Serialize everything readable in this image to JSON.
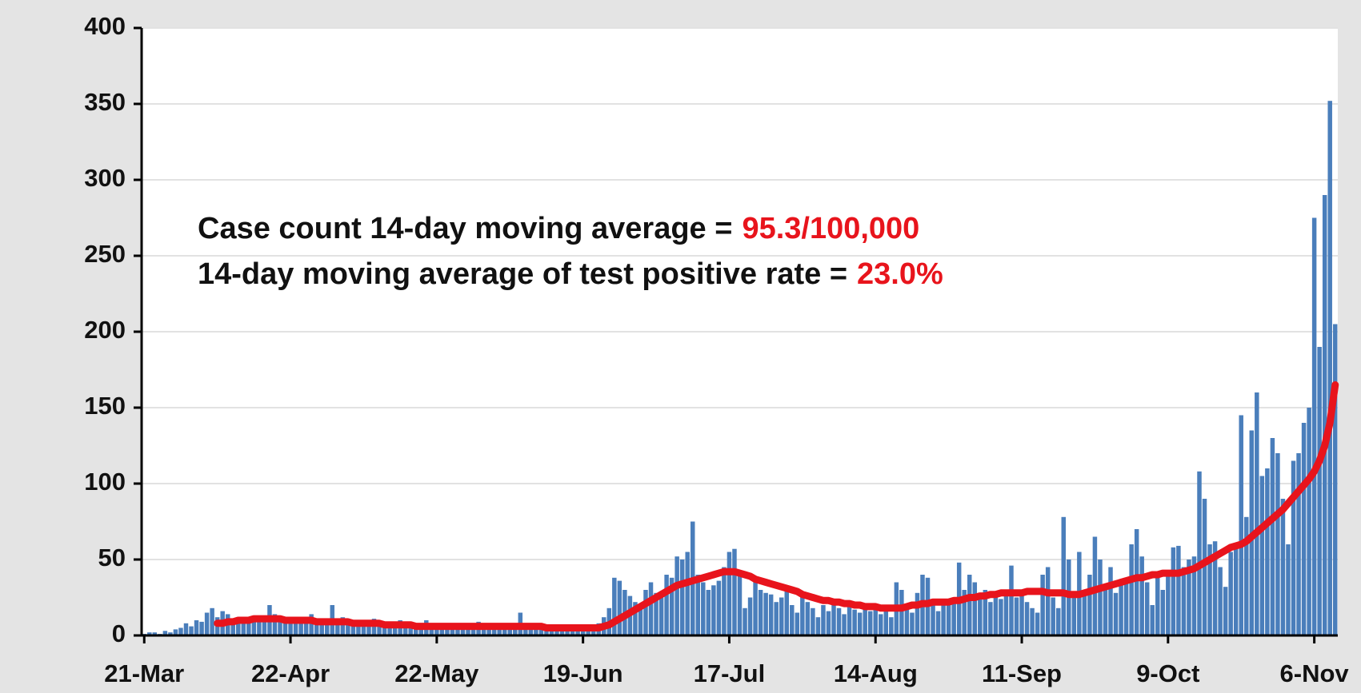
{
  "chart_data": {
    "type": "bar",
    "annotations": [
      {
        "text": "Case count 14-day moving average =",
        "value": "95.3/100,000"
      },
      {
        "text": "14-day moving average of test positive rate =",
        "value": "23.0%"
      }
    ],
    "categories": [
      "21-Mar",
      null,
      null,
      null,
      null,
      null,
      null,
      null,
      null,
      null,
      null,
      null,
      null,
      null,
      null,
      null,
      null,
      null,
      null,
      null,
      null,
      null,
      null,
      null,
      null,
      null,
      null,
      null,
      "22-Apr",
      null,
      null,
      null,
      null,
      null,
      null,
      null,
      null,
      null,
      null,
      null,
      null,
      null,
      null,
      null,
      null,
      null,
      null,
      null,
      null,
      null,
      null,
      null,
      null,
      null,
      null,
      null,
      "22-May",
      null,
      null,
      null,
      null,
      null,
      null,
      null,
      null,
      null,
      null,
      null,
      null,
      null,
      null,
      null,
      null,
      null,
      null,
      null,
      null,
      null,
      null,
      null,
      null,
      null,
      null,
      null,
      "19-Jun",
      null,
      null,
      null,
      null,
      null,
      null,
      null,
      null,
      null,
      null,
      null,
      null,
      null,
      null,
      null,
      null,
      null,
      null,
      null,
      null,
      null,
      null,
      null,
      null,
      null,
      null,
      null,
      "17-Jul",
      null,
      null,
      null,
      null,
      null,
      null,
      null,
      null,
      null,
      null,
      null,
      null,
      null,
      null,
      null,
      null,
      null,
      null,
      null,
      null,
      null,
      null,
      null,
      null,
      null,
      null,
      null,
      "14-Aug",
      null,
      null,
      null,
      null,
      null,
      null,
      null,
      null,
      null,
      null,
      null,
      null,
      null,
      null,
      null,
      null,
      null,
      null,
      null,
      null,
      null,
      null,
      null,
      null,
      null,
      null,
      null,
      "11-Sep",
      null,
      null,
      null,
      null,
      null,
      null,
      null,
      null,
      null,
      null,
      null,
      null,
      null,
      null,
      null,
      null,
      null,
      null,
      null,
      null,
      null,
      null,
      null,
      null,
      null,
      null,
      null,
      "9-Oct",
      null,
      null,
      null,
      null,
      null,
      null,
      null,
      null,
      null,
      null,
      null,
      null,
      null,
      null,
      null,
      null,
      null,
      null,
      null,
      null,
      null,
      null,
      null,
      null,
      null,
      null,
      null,
      "6-Nov",
      null,
      null,
      null,
      null
    ],
    "series": [
      {
        "type": "bar",
        "color": "#4a7ebb",
        "values": [
          1,
          2,
          2,
          1,
          3,
          2,
          4,
          5,
          8,
          6,
          10,
          9,
          15,
          18,
          12,
          16,
          14,
          10,
          9,
          8,
          12,
          11,
          13,
          10,
          20,
          14,
          9,
          11,
          10,
          12,
          8,
          9,
          14,
          10,
          7,
          8,
          20,
          9,
          12,
          8,
          6,
          10,
          7,
          9,
          11,
          6,
          8,
          5,
          9,
          10,
          7,
          6,
          8,
          5,
          10,
          7,
          6,
          5,
          7,
          4,
          8,
          6,
          5,
          6,
          9,
          4,
          7,
          5,
          6,
          8,
          4,
          5,
          15,
          6,
          4,
          5,
          7,
          3,
          6,
          4,
          5,
          7,
          4,
          6,
          5,
          4,
          6,
          8,
          12,
          18,
          38,
          36,
          30,
          26,
          22,
          18,
          30,
          35,
          28,
          25,
          40,
          38,
          52,
          50,
          55,
          75,
          40,
          35,
          30,
          33,
          36,
          45,
          55,
          57,
          42,
          18,
          25,
          35,
          30,
          28,
          27,
          22,
          25,
          30,
          20,
          15,
          28,
          22,
          18,
          12,
          20,
          16,
          22,
          18,
          14,
          19,
          17,
          15,
          20,
          16,
          18,
          14,
          16,
          12,
          35,
          30,
          20,
          15,
          28,
          40,
          38,
          24,
          16,
          20,
          22,
          25,
          48,
          30,
          40,
          35,
          28,
          30,
          22,
          26,
          24,
          28,
          46,
          25,
          30,
          22,
          18,
          15,
          40,
          45,
          25,
          18,
          78,
          50,
          28,
          55,
          30,
          40,
          65,
          50,
          30,
          45,
          28,
          35,
          38,
          60,
          70,
          52,
          35,
          20,
          38,
          30,
          40,
          58,
          59,
          45,
          50,
          52,
          108,
          90,
          60,
          62,
          45,
          32,
          55,
          60,
          145,
          78,
          135,
          160,
          105,
          110,
          130,
          120,
          90,
          60,
          115,
          120,
          140,
          150,
          275,
          190,
          290,
          352,
          205
        ]
      },
      {
        "type": "line",
        "color": "#e8141c",
        "values": [
          null,
          null,
          null,
          null,
          null,
          null,
          null,
          null,
          null,
          null,
          null,
          null,
          null,
          null,
          8,
          8,
          9,
          9,
          10,
          10,
          10,
          11,
          11,
          11,
          11,
          11,
          11,
          10,
          10,
          10,
          10,
          10,
          10,
          9,
          9,
          9,
          9,
          9,
          9,
          9,
          8,
          8,
          8,
          8,
          8,
          8,
          7,
          7,
          7,
          7,
          7,
          7,
          6,
          6,
          6,
          6,
          6,
          6,
          6,
          6,
          6,
          6,
          6,
          6,
          6,
          6,
          6,
          6,
          6,
          6,
          6,
          6,
          6,
          6,
          6,
          6,
          6,
          5,
          5,
          5,
          5,
          5,
          5,
          5,
          5,
          5,
          5,
          5,
          6,
          7,
          9,
          11,
          13,
          15,
          17,
          19,
          21,
          23,
          25,
          27,
          29,
          31,
          33,
          34,
          35,
          36,
          37,
          38,
          39,
          40,
          41,
          42,
          42,
          42,
          41,
          40,
          39,
          37,
          36,
          35,
          34,
          33,
          32,
          31,
          30,
          29,
          27,
          26,
          25,
          24,
          23,
          23,
          22,
          22,
          21,
          21,
          20,
          20,
          19,
          19,
          19,
          18,
          18,
          18,
          18,
          18,
          19,
          20,
          20,
          21,
          21,
          22,
          22,
          22,
          22,
          23,
          23,
          24,
          25,
          25,
          26,
          26,
          27,
          27,
          28,
          28,
          28,
          28,
          28,
          29,
          29,
          29,
          29,
          28,
          28,
          28,
          28,
          27,
          27,
          27,
          28,
          29,
          30,
          31,
          32,
          33,
          34,
          35,
          36,
          37,
          38,
          38,
          39,
          40,
          40,
          41,
          41,
          41,
          41,
          42,
          43,
          44,
          46,
          48,
          50,
          52,
          54,
          56,
          58,
          59,
          60,
          62,
          65,
          68,
          71,
          74,
          77,
          80,
          83,
          87,
          91,
          95,
          99,
          103,
          108,
          115,
          125,
          140,
          165
        ]
      }
    ],
    "ylim": [
      0,
      400
    ],
    "yticks": [
      0,
      50,
      100,
      150,
      200,
      250,
      300,
      350,
      400
    ],
    "grid": true,
    "annotation_value_color": "#e8141c"
  }
}
